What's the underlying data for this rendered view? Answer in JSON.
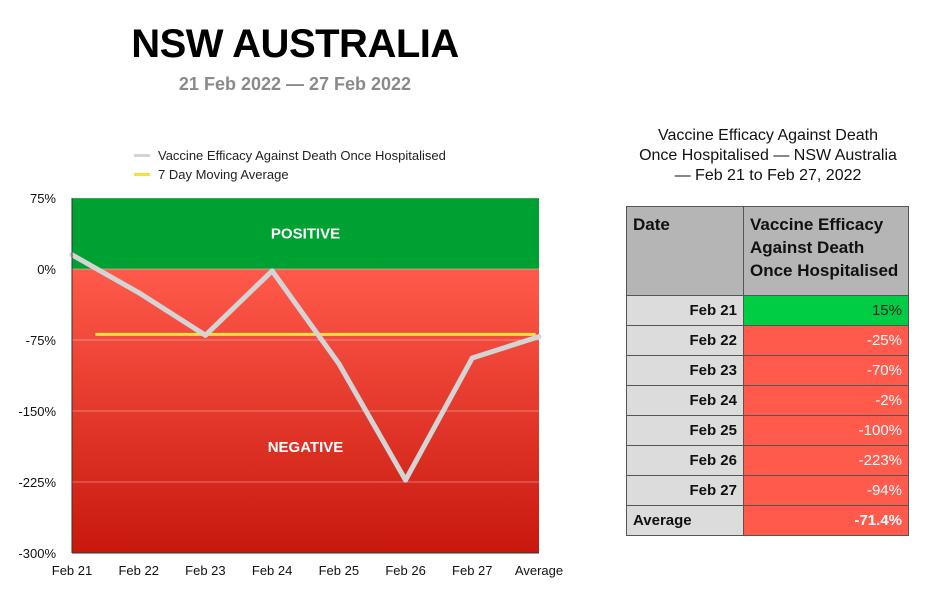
{
  "header": {
    "title": "NSW AUSTRALIA",
    "subtitle": "21 Feb 2022 — 27 Feb 2022"
  },
  "colors": {
    "positive": "#00a133",
    "negative_top": "#ff5a4b",
    "negative_bottom": "#c8180d",
    "series_line": "#d4d4d4",
    "moving_average": "#f5e23a",
    "cell_positive": "#00cc44",
    "cell_negative": "#ff5a4b"
  },
  "chart_data": {
    "type": "line",
    "legend": {
      "position": "top-left",
      "entries": [
        "Vaccine Efficacy Against Death Once Hospitalised",
        "7 Day Moving Average"
      ]
    },
    "categories": [
      "Feb 21",
      "Feb 22",
      "Feb 23",
      "Feb 24",
      "Feb 25",
      "Feb 26",
      "Feb 27",
      "Average"
    ],
    "series": [
      {
        "name": "Vaccine Efficacy Against Death Once Hospitalised",
        "values": [
          15,
          -25,
          -70,
          -2,
          -100,
          -223,
          -94,
          -71.4
        ]
      },
      {
        "name": "7 Day Moving Average",
        "values": [
          -69,
          -69,
          -69,
          -69,
          -69,
          -69,
          -69,
          -69
        ],
        "category_range": [
          0.35,
          6.95
        ]
      }
    ],
    "ylim": [
      -300,
      75
    ],
    "yticks": [
      75,
      0,
      -75,
      -150,
      -225,
      -300
    ],
    "ytick_labels": [
      "75%",
      "0%",
      "-75%",
      "-150%",
      "-225%",
      "-300%"
    ],
    "regions": {
      "positive_label": "POSITIVE",
      "negative_label": "NEGATIVE"
    },
    "grid": true
  },
  "table": {
    "title_lines": [
      "Vaccine Efficacy Against Death",
      "Once Hospitalised — NSW Australia",
      "— Feb 21 to Feb 27, 2022"
    ],
    "headers": [
      "Date",
      "Vaccine Efficacy Against Death Once Hospitalised"
    ],
    "rows": [
      {
        "date": "Feb 21",
        "value": "15%",
        "sign": "pos"
      },
      {
        "date": "Feb 22",
        "value": "-25%",
        "sign": "neg"
      },
      {
        "date": "Feb 23",
        "value": "-70%",
        "sign": "neg"
      },
      {
        "date": "Feb 24",
        "value": "-2%",
        "sign": "neg"
      },
      {
        "date": "Feb 25",
        "value": "-100%",
        "sign": "neg"
      },
      {
        "date": "Feb 26",
        "value": "-223%",
        "sign": "neg"
      },
      {
        "date": "Feb 27",
        "value": "-94%",
        "sign": "neg"
      }
    ],
    "average": {
      "date": "Average",
      "value": "-71.4%"
    }
  }
}
